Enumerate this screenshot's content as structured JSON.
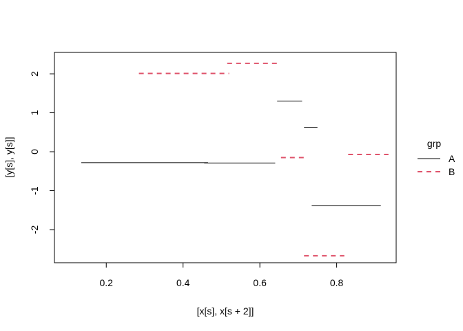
{
  "chart_data": {
    "type": "segments",
    "title": "",
    "xlabel": "[x[s], x[s + 2]]",
    "ylabel": "[y[s], y[s]]",
    "xlim": [
      0.065,
      0.955
    ],
    "ylim": [
      -2.85,
      2.55
    ],
    "xticks": [
      0.2,
      0.4,
      0.6,
      0.8
    ],
    "xtick_labels": [
      "0.2",
      "0.4",
      "0.6",
      "0.8"
    ],
    "yticks": [
      -2,
      -1,
      0,
      1,
      2
    ],
    "ytick_labels": [
      "-2",
      "-1",
      "0",
      "1",
      "2"
    ],
    "grid": false,
    "legend": {
      "title": "grp",
      "placement": "right",
      "entries": [
        {
          "label": "A",
          "color": "#000000",
          "dash": "solid"
        },
        {
          "label": "B",
          "color": "#DF536B",
          "dash": "dashed"
        }
      ]
    },
    "series": [
      {
        "name": "A",
        "color": "#000000",
        "dash": "solid",
        "segments": [
          {
            "x0": 0.135,
            "x1": 0.465,
            "y": -0.28
          },
          {
            "x0": 0.455,
            "x1": 0.64,
            "y": -0.29
          },
          {
            "x0": 0.645,
            "x1": 0.71,
            "y": 1.3
          },
          {
            "x0": 0.715,
            "x1": 0.75,
            "y": 0.63
          },
          {
            "x0": 0.735,
            "x1": 0.915,
            "y": -1.39
          }
        ]
      },
      {
        "name": "B",
        "color": "#DF536B",
        "dash": "dashed",
        "segments": [
          {
            "x0": 0.285,
            "x1": 0.52,
            "y": 2.01
          },
          {
            "x0": 0.515,
            "x1": 0.645,
            "y": 2.27
          },
          {
            "x0": 0.655,
            "x1": 0.72,
            "y": -0.15
          },
          {
            "x0": 0.83,
            "x1": 0.935,
            "y": -0.07
          },
          {
            "x0": 0.715,
            "x1": 0.82,
            "y": -2.67
          }
        ]
      }
    ]
  }
}
